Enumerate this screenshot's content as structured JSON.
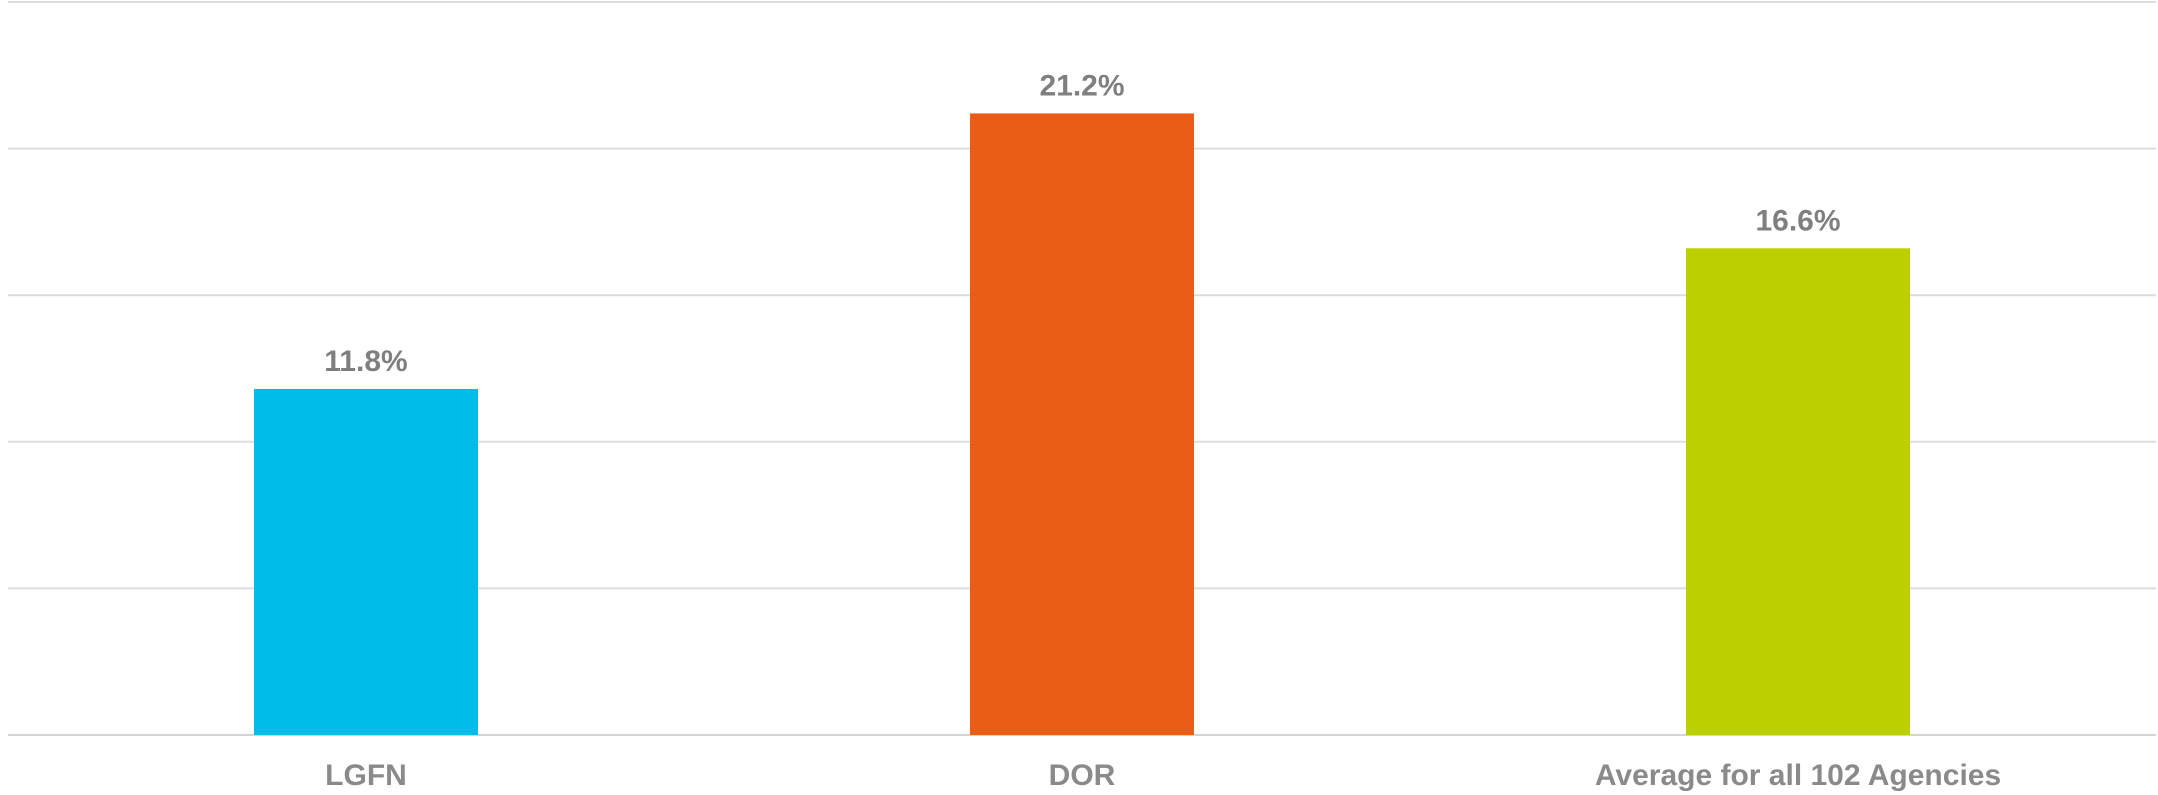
{
  "chart_data": {
    "type": "bar",
    "title": "",
    "xlabel": "",
    "ylabel": "",
    "categories": [
      "LGFN",
      "DOR",
      "Average for all 102 Agencies"
    ],
    "values": [
      11.8,
      21.2,
      16.6
    ],
    "value_labels": [
      "11.8%",
      "21.2%",
      "16.6%"
    ],
    "value_suffix": "%",
    "colors": [
      "#00BCE8",
      "#EA5D16",
      "#BCD000"
    ],
    "ylim": [
      0,
      25
    ],
    "gridlines": [
      0,
      5,
      10,
      15,
      20,
      25
    ],
    "grid": true,
    "legend": "none"
  }
}
